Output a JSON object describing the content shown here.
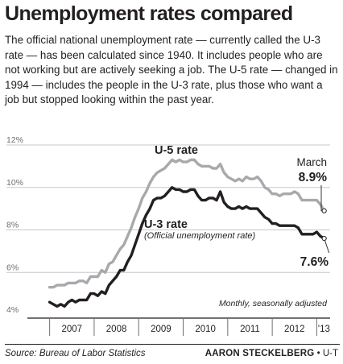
{
  "header": {
    "title": "Unemployment rates compared",
    "intro": "The official national unemployment rate — currently called the U-3 rate — has been calculated since 1940. It includes people who are not working but are actively seeking a job. The U-5 rate — changed in 1994 — includes the people in the U-3 rate, plus those who want a job but stopped looking within the past year."
  },
  "chart_data": {
    "type": "line",
    "title": "",
    "xlabel": "",
    "ylabel": "",
    "ylim": [
      4,
      12
    ],
    "xlim": [
      2006.5,
      2013.3
    ],
    "y_ticks": [
      "4%",
      "6%",
      "8%",
      "10%",
      "12%"
    ],
    "year_labels": [
      "2007",
      "2008",
      "2009",
      "2010",
      "2011",
      "2012",
      "'13"
    ],
    "grid": "horizontal",
    "colors": {
      "u5": "#a7a9ac",
      "u3": "#231f20",
      "grid": "#c7c8ca",
      "axis": "#231f20"
    },
    "note": "Monthly, seasonally adjusted",
    "series": [
      {
        "name": "U-5 rate",
        "values": [
          [
            2007.0,
            5.3
          ],
          [
            2007.083,
            5.3
          ],
          [
            2007.167,
            5.4
          ],
          [
            2007.25,
            5.4
          ],
          [
            2007.333,
            5.4
          ],
          [
            2007.417,
            5.5
          ],
          [
            2007.5,
            5.5
          ],
          [
            2007.583,
            5.5
          ],
          [
            2007.667,
            5.6
          ],
          [
            2007.75,
            5.6
          ],
          [
            2007.833,
            5.5
          ],
          [
            2007.917,
            5.8
          ],
          [
            2008.0,
            5.8
          ],
          [
            2008.083,
            5.8
          ],
          [
            2008.167,
            6.1
          ],
          [
            2008.25,
            6.0
          ],
          [
            2008.333,
            6.4
          ],
          [
            2008.417,
            6.5
          ],
          [
            2008.5,
            6.8
          ],
          [
            2008.583,
            7.1
          ],
          [
            2008.667,
            7.3
          ],
          [
            2008.75,
            7.7
          ],
          [
            2008.833,
            8.1
          ],
          [
            2008.917,
            8.6
          ],
          [
            2009.0,
            9.0
          ],
          [
            2009.083,
            9.5
          ],
          [
            2009.167,
            9.8
          ],
          [
            2009.25,
            10.2
          ],
          [
            2009.333,
            10.5
          ],
          [
            2009.417,
            10.7
          ],
          [
            2009.5,
            10.8
          ],
          [
            2009.583,
            10.9
          ],
          [
            2009.667,
            11.1
          ],
          [
            2009.75,
            11.3
          ],
          [
            2009.833,
            11.2
          ],
          [
            2009.917,
            11.3
          ],
          [
            2010.0,
            11.2
          ],
          [
            2010.083,
            11.2
          ],
          [
            2010.167,
            11.3
          ],
          [
            2010.25,
            11.3
          ],
          [
            2010.333,
            11.1
          ],
          [
            2010.417,
            11.0
          ],
          [
            2010.5,
            11.0
          ],
          [
            2010.583,
            11.0
          ],
          [
            2010.667,
            10.9
          ],
          [
            2010.75,
            10.9
          ],
          [
            2010.833,
            11.1
          ],
          [
            2010.917,
            10.7
          ],
          [
            2011.0,
            10.5
          ],
          [
            2011.083,
            10.4
          ],
          [
            2011.167,
            10.3
          ],
          [
            2011.25,
            10.4
          ],
          [
            2011.333,
            10.3
          ],
          [
            2011.417,
            10.5
          ],
          [
            2011.5,
            10.4
          ],
          [
            2011.583,
            10.4
          ],
          [
            2011.667,
            10.5
          ],
          [
            2011.75,
            10.3
          ],
          [
            2011.833,
            10.0
          ],
          [
            2011.917,
            9.9
          ],
          [
            2012.0,
            9.7
          ],
          [
            2012.083,
            9.7
          ],
          [
            2012.167,
            9.6
          ],
          [
            2012.25,
            9.7
          ],
          [
            2012.333,
            9.7
          ],
          [
            2012.417,
            9.7
          ],
          [
            2012.5,
            9.8
          ],
          [
            2012.583,
            9.7
          ],
          [
            2012.667,
            9.4
          ],
          [
            2012.75,
            9.4
          ],
          [
            2012.833,
            9.4
          ],
          [
            2012.917,
            9.4
          ],
          [
            2013.0,
            9.4
          ],
          [
            2013.083,
            9.2
          ],
          [
            2013.167,
            8.9
          ]
        ],
        "end_label": "8.9%",
        "end_month": "March"
      },
      {
        "name": "U-3 rate",
        "subtitle": "(Official unemployment rate)",
        "values": [
          [
            2007.0,
            4.6
          ],
          [
            2007.083,
            4.5
          ],
          [
            2007.167,
            4.4
          ],
          [
            2007.25,
            4.5
          ],
          [
            2007.333,
            4.4
          ],
          [
            2007.417,
            4.6
          ],
          [
            2007.5,
            4.7
          ],
          [
            2007.583,
            4.6
          ],
          [
            2007.667,
            4.7
          ],
          [
            2007.75,
            4.7
          ],
          [
            2007.833,
            4.7
          ],
          [
            2007.917,
            5.0
          ],
          [
            2008.0,
            5.0
          ],
          [
            2008.083,
            4.9
          ],
          [
            2008.167,
            5.1
          ],
          [
            2008.25,
            5.0
          ],
          [
            2008.333,
            5.4
          ],
          [
            2008.417,
            5.6
          ],
          [
            2008.5,
            5.8
          ],
          [
            2008.583,
            6.1
          ],
          [
            2008.667,
            6.1
          ],
          [
            2008.75,
            6.5
          ],
          [
            2008.833,
            6.8
          ],
          [
            2008.917,
            7.3
          ],
          [
            2009.0,
            7.8
          ],
          [
            2009.083,
            8.3
          ],
          [
            2009.167,
            8.7
          ],
          [
            2009.25,
            9.0
          ],
          [
            2009.333,
            9.4
          ],
          [
            2009.417,
            9.5
          ],
          [
            2009.5,
            9.5
          ],
          [
            2009.583,
            9.6
          ],
          [
            2009.667,
            9.8
          ],
          [
            2009.75,
            10.0
          ],
          [
            2009.833,
            9.9
          ],
          [
            2009.917,
            9.9
          ],
          [
            2010.0,
            9.8
          ],
          [
            2010.083,
            9.8
          ],
          [
            2010.167,
            9.9
          ],
          [
            2010.25,
            9.9
          ],
          [
            2010.333,
            9.6
          ],
          [
            2010.417,
            9.4
          ],
          [
            2010.5,
            9.4
          ],
          [
            2010.583,
            9.5
          ],
          [
            2010.667,
            9.5
          ],
          [
            2010.75,
            9.4
          ],
          [
            2010.833,
            9.8
          ],
          [
            2010.917,
            9.3
          ],
          [
            2011.0,
            9.1
          ],
          [
            2011.083,
            9.0
          ],
          [
            2011.167,
            9.0
          ],
          [
            2011.25,
            9.1
          ],
          [
            2011.333,
            9.0
          ],
          [
            2011.417,
            9.1
          ],
          [
            2011.5,
            9.0
          ],
          [
            2011.583,
            9.0
          ],
          [
            2011.667,
            9.0
          ],
          [
            2011.75,
            8.8
          ],
          [
            2011.833,
            8.6
          ],
          [
            2011.917,
            8.5
          ],
          [
            2012.0,
            8.3
          ],
          [
            2012.083,
            8.3
          ],
          [
            2012.167,
            8.2
          ],
          [
            2012.25,
            8.2
          ],
          [
            2012.333,
            8.2
          ],
          [
            2012.417,
            8.2
          ],
          [
            2012.5,
            8.2
          ],
          [
            2012.583,
            8.1
          ],
          [
            2012.667,
            7.8
          ],
          [
            2012.75,
            7.8
          ],
          [
            2012.833,
            7.8
          ],
          [
            2012.917,
            7.8
          ],
          [
            2013.0,
            7.9
          ],
          [
            2013.083,
            7.7
          ],
          [
            2013.167,
            7.6
          ]
        ],
        "end_label": "7.6%"
      }
    ]
  },
  "footer": {
    "source": "Source: Bureau of Labor Statistics",
    "credit_name": "AARON STECKELBERG",
    "credit_sep": " • ",
    "credit_org": "U-T"
  }
}
